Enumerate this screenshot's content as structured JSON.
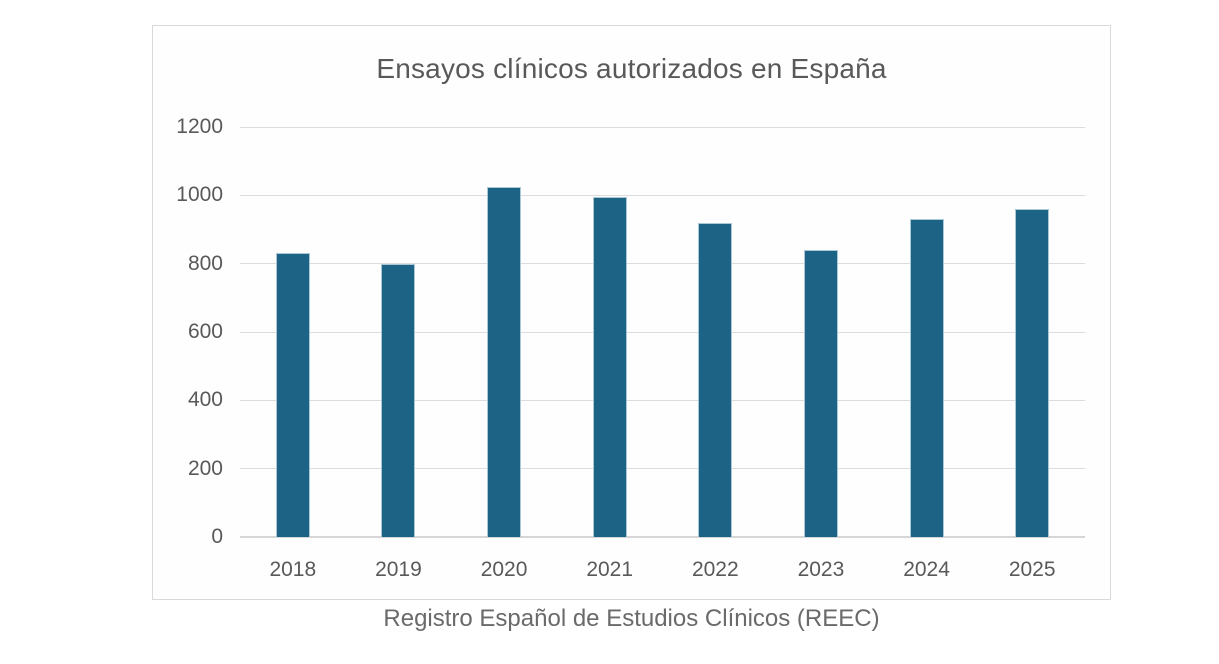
{
  "caption": "Registro Español de Estudios Clínicos (REEC)",
  "chart_data": {
    "type": "bar",
    "title": "Ensayos clínicos autorizados en España",
    "categories": [
      "2018",
      "2019",
      "2020",
      "2021",
      "2022",
      "2023",
      "2024",
      "2025"
    ],
    "values": [
      830,
      800,
      1025,
      995,
      920,
      840,
      930,
      960
    ],
    "xlabel": "",
    "ylabel": "",
    "ylim": [
      0,
      1200
    ],
    "yticks": [
      0,
      200,
      400,
      600,
      800,
      1000,
      1200
    ],
    "grid": true,
    "legend": "none",
    "colors": {
      "bar_fill": "#1d6385",
      "bar_border": "#aac8d6",
      "gridline": "#dcdcdc",
      "axis_baseline": "#d6d6d6",
      "tick_label": "#595959",
      "title": "#595959",
      "panel_border": "#d9d9d9",
      "panel_background": "#fefefe",
      "caption": "#6a6a6a"
    }
  }
}
